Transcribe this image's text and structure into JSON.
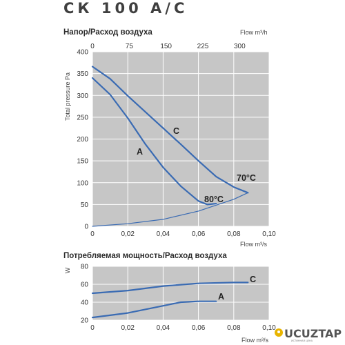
{
  "page": {
    "title": "СК 100 A/C"
  },
  "chart_data": [
    {
      "type": "line",
      "title": "Напор/Расход воздуха",
      "xlabel": "Flow m³/s",
      "x2label": "Flow m³/h",
      "ylabel": "Total pressure Pa",
      "xlim": [
        0,
        0.1
      ],
      "x2lim": [
        0,
        360
      ],
      "ylim": [
        0,
        400
      ],
      "x_ticks": [
        "0",
        "0,02",
        "0,04",
        "0,06",
        "0,08",
        "0,10"
      ],
      "x2_ticks": [
        "0",
        "75",
        "150",
        "225",
        "300"
      ],
      "y_ticks": [
        "0",
        "50",
        "100",
        "150",
        "200",
        "250",
        "300",
        "350",
        "400"
      ],
      "grid": true,
      "series": [
        {
          "name": "C",
          "color": "#3a6bb3",
          "x": [
            0,
            0.01,
            0.02,
            0.03,
            0.04,
            0.05,
            0.06,
            0.07,
            0.08,
            0.088
          ],
          "y": [
            366,
            338,
            299,
            262,
            225,
            188,
            150,
            114,
            90,
            77
          ]
        },
        {
          "name": "A",
          "color": "#3a6bb3",
          "x": [
            0,
            0.01,
            0.02,
            0.03,
            0.04,
            0.05,
            0.06,
            0.065,
            0.07
          ],
          "y": [
            340,
            302,
            248,
            188,
            135,
            92,
            58,
            50,
            52
          ]
        },
        {
          "color": "#3a6bb3",
          "x": [
            0,
            0.02,
            0.04,
            0.06,
            0.08,
            0.088
          ],
          "y": [
            0,
            6,
            16,
            35,
            62,
            77
          ]
        }
      ],
      "annotations": [
        "C",
        "A",
        "70°C",
        "80°C"
      ]
    },
    {
      "type": "line",
      "title": "Потребляемая мощность/Расход воздуха",
      "xlabel": "Flow m³/s",
      "ylabel": "W",
      "xlim": [
        0,
        0.1
      ],
      "ylim": [
        20,
        80
      ],
      "x_ticks": [
        "0",
        "0,02",
        "0,04",
        "0,06",
        "0,08",
        "0,10"
      ],
      "y_ticks": [
        "20",
        "40",
        "60",
        "80"
      ],
      "grid": true,
      "series": [
        {
          "name": "C",
          "color": "#3a6bb3",
          "x": [
            0,
            0.02,
            0.04,
            0.06,
            0.08,
            0.088
          ],
          "y": [
            50,
            53,
            58,
            61,
            62,
            62
          ]
        },
        {
          "name": "A",
          "color": "#3a6bb3",
          "x": [
            0,
            0.02,
            0.04,
            0.05,
            0.06,
            0.07
          ],
          "y": [
            23,
            28,
            36,
            40,
            41,
            41
          ]
        }
      ]
    }
  ],
  "watermark": {
    "text": "UCUZTAP",
    "subtext": "ИСТИННАЯ ЦЕНА"
  }
}
